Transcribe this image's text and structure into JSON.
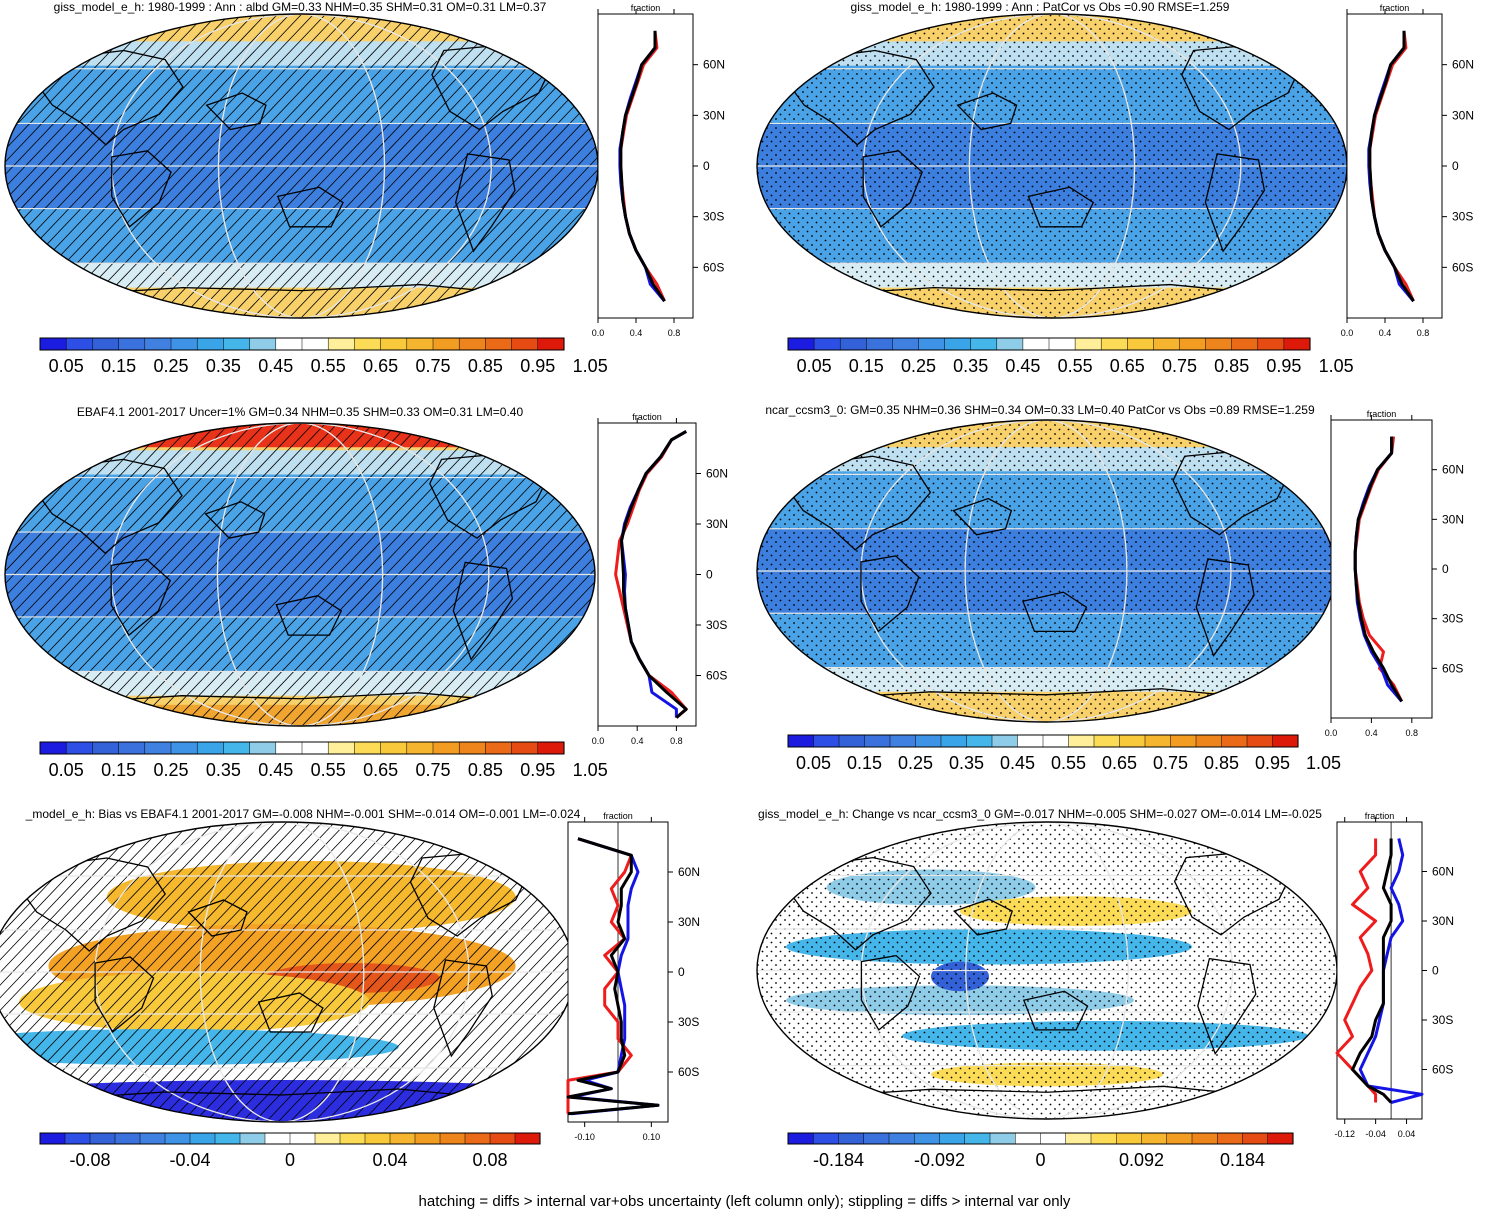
{
  "footnote": "hatching = diffs > internal var+obs uncertainty (left column only); stippling = diffs > internal var only",
  "colors": {
    "scale": [
      "#1c1ce0",
      "#2d4fe6",
      "#3261d8",
      "#3a71dc",
      "#3f80e0",
      "#3e93e6",
      "#3aa4e8",
      "#45b6ea",
      "#8fcce8",
      "#ffffff",
      "#ffffff",
      "#ffef9a",
      "#fcdc57",
      "#f8c93b",
      "#f5b52e",
      "#f29d22",
      "#ee841c",
      "#ea6a17",
      "#e54b12",
      "#dd1a0a"
    ],
    "ocean_base": "#4a8fe0",
    "polar_warm": "#f8d16a",
    "land": "#000000",
    "profile_red": "#ee1c1c",
    "profile_blue": "#1414e6",
    "profile_black": "#000000"
  },
  "panels": [
    {
      "id": "p1",
      "title": "giss_model_e_h: 1980-1999 : Ann : albd GM=0.33 NHM=0.35 SHM=0.31 OM=0.31 LM=0.37",
      "pattern": "hatch",
      "colorbar_labels": [
        "0.05",
        "0.15",
        "0.25",
        "0.35",
        "0.45",
        "0.55",
        "0.65",
        "0.75",
        "0.85",
        "0.95",
        "1.05"
      ],
      "profile_title": "fraction",
      "profile_xticks": [
        "0.0",
        "0.4",
        "0.8"
      ],
      "profile_yticks": [
        "60N",
        "30N",
        "0",
        "30S",
        "60S"
      ]
    },
    {
      "id": "p2",
      "title": "giss_model_e_h: 1980-1999 : Ann : PatCor vs Obs =0.90 RMSE=1.259",
      "pattern": "stipple",
      "colorbar_labels": [
        "0.05",
        "0.15",
        "0.25",
        "0.35",
        "0.45",
        "0.55",
        "0.65",
        "0.75",
        "0.85",
        "0.95",
        "1.05"
      ],
      "profile_title": "fraction",
      "profile_xticks": [
        "0.0",
        "0.4",
        "0.8"
      ],
      "profile_yticks": [
        "60N",
        "30N",
        "0",
        "30S",
        "60S"
      ]
    },
    {
      "id": "p3",
      "title": "EBAF4.1 2001-2017 Uncer=1% GM=0.34 NHM=0.35 SHM=0.33 OM=0.31 LM=0.40",
      "pattern": "hatch",
      "colorbar_labels": [
        "0.05",
        "0.15",
        "0.25",
        "0.35",
        "0.45",
        "0.55",
        "0.65",
        "0.75",
        "0.85",
        "0.95",
        "1.05"
      ],
      "profile_title": "fraction",
      "profile_xticks": [
        "0.0",
        "0.4",
        "0.8"
      ],
      "profile_yticks": [
        "60N",
        "30N",
        "0",
        "30S",
        "60S"
      ]
    },
    {
      "id": "p4",
      "title": "ncar_ccsm3_0: GM=0.35 NHM=0.36 SHM=0.34 OM=0.33 LM=0.40 PatCor vs Obs =0.89 RMSE=1.259",
      "pattern": "stipple",
      "colorbar_labels": [
        "0.05",
        "0.15",
        "0.25",
        "0.35",
        "0.45",
        "0.55",
        "0.65",
        "0.75",
        "0.85",
        "0.95",
        "1.05"
      ],
      "profile_title": "fraction",
      "profile_xticks": [
        "0.0",
        "0.4",
        "0.8"
      ],
      "profile_yticks": [
        "60N",
        "30N",
        "0",
        "30S",
        "60S"
      ]
    },
    {
      "id": "p5",
      "title": "_model_e_h: Bias vs EBAF4.1 2001-2017 GM=-0.008 NHM=-0.001 SHM=-0.014 OM=-0.001 LM=-0.024",
      "pattern": "hatch",
      "colorbar_labels": [
        "-0.08",
        "-0.04",
        "0",
        "0.04",
        "0.08"
      ],
      "profile_title": "fraction",
      "profile_xticks": [
        "-0.10",
        "0.10"
      ],
      "profile_yticks": [
        "60N",
        "30N",
        "0",
        "30S",
        "60S"
      ]
    },
    {
      "id": "p6",
      "title": "giss_model_e_h: Change vs ncar_ccsm3_0 GM=-0.017 NHM=-0.005 SHM=-0.027 OM=-0.014 LM=-0.025",
      "pattern": "stipple",
      "colorbar_labels": [
        "-0.184",
        "-0.092",
        "0",
        "0.092",
        "0.184"
      ],
      "profile_title": "fraction",
      "profile_xticks": [
        "-0.12",
        "-0.04",
        "0.04"
      ],
      "profile_yticks": [
        "60N",
        "30N",
        "0",
        "30S",
        "60S"
      ]
    }
  ],
  "chart_data": [
    {
      "type": "heatmap",
      "title": "giss_model_e_h: 1980-1999 : Ann : albd GM=0.33 NHM=0.35 SHM=0.31 OM=0.31 LM=0.37",
      "colorbar": {
        "min": 0.0,
        "max": 1.1,
        "step": 0.05,
        "labels": [
          "0.05",
          "0.15",
          "0.25",
          "0.35",
          "0.45",
          "0.55",
          "0.65",
          "0.75",
          "0.85",
          "0.95",
          "1.05"
        ]
      },
      "stats": {
        "GM": 0.33,
        "NHM": 0.35,
        "SHM": 0.31,
        "OM": 0.31,
        "LM": 0.37
      }
    },
    {
      "type": "line",
      "title": "fraction",
      "xlim": [
        0.0,
        1.0
      ],
      "x_ticks": [
        0.0,
        0.4,
        0.8
      ],
      "y_ticks": [
        "60N",
        "30N",
        "0",
        "30S",
        "60S"
      ],
      "y": [
        80,
        70,
        60,
        50,
        40,
        30,
        20,
        10,
        0,
        -10,
        -20,
        -30,
        -40,
        -50,
        -60,
        -70,
        -80
      ],
      "series": [
        {
          "name": "",
          "color": "red",
          "values": [
            0.6,
            0.62,
            0.48,
            0.42,
            0.36,
            0.3,
            0.27,
            0.24,
            0.24,
            0.25,
            0.27,
            0.29,
            0.33,
            0.4,
            0.5,
            0.62,
            0.7
          ]
        },
        {
          "name": "",
          "color": "blue",
          "values": [
            0.6,
            0.6,
            0.46,
            0.4,
            0.34,
            0.29,
            0.26,
            0.23,
            0.23,
            0.24,
            0.26,
            0.29,
            0.33,
            0.4,
            0.5,
            0.55,
            0.7
          ]
        },
        {
          "name": "",
          "color": "black",
          "values": [
            0.6,
            0.6,
            0.46,
            0.41,
            0.35,
            0.29,
            0.26,
            0.24,
            0.24,
            0.25,
            0.26,
            0.29,
            0.33,
            0.4,
            0.5,
            0.58,
            0.7
          ]
        }
      ]
    },
    {
      "type": "heatmap",
      "title": "giss_model_e_h: 1980-1999 : Ann : PatCor vs Obs =0.90 RMSE=1.259",
      "colorbar": {
        "min": 0.0,
        "max": 1.1,
        "step": 0.05,
        "labels": [
          "0.05",
          "0.15",
          "0.25",
          "0.35",
          "0.45",
          "0.55",
          "0.65",
          "0.75",
          "0.85",
          "0.95",
          "1.05"
        ]
      },
      "stats": {
        "PatCor": 0.9,
        "RMSE": 1.259
      }
    },
    {
      "type": "line",
      "title": "fraction",
      "xlim": [
        0.0,
        1.0
      ],
      "x_ticks": [
        0.0,
        0.4,
        0.8
      ],
      "y_ticks": [
        "60N",
        "30N",
        "0",
        "30S",
        "60S"
      ],
      "y": [
        80,
        70,
        60,
        50,
        40,
        30,
        20,
        10,
        0,
        -10,
        -20,
        -30,
        -40,
        -50,
        -60,
        -70,
        -80
      ],
      "series": [
        {
          "name": "",
          "color": "red",
          "values": [
            0.6,
            0.62,
            0.48,
            0.42,
            0.36,
            0.3,
            0.27,
            0.24,
            0.24,
            0.25,
            0.27,
            0.29,
            0.33,
            0.4,
            0.5,
            0.62,
            0.7
          ]
        },
        {
          "name": "",
          "color": "blue",
          "values": [
            0.6,
            0.6,
            0.46,
            0.4,
            0.34,
            0.29,
            0.26,
            0.23,
            0.23,
            0.24,
            0.26,
            0.29,
            0.33,
            0.4,
            0.5,
            0.55,
            0.7
          ]
        },
        {
          "name": "",
          "color": "black",
          "values": [
            0.6,
            0.6,
            0.46,
            0.41,
            0.35,
            0.29,
            0.26,
            0.24,
            0.24,
            0.25,
            0.26,
            0.29,
            0.33,
            0.4,
            0.5,
            0.58,
            0.7
          ]
        }
      ]
    },
    {
      "type": "heatmap",
      "title": "EBAF4.1 2001-2017 Uncer=1% GM=0.34 NHM=0.35 SHM=0.33 OM=0.31 LM=0.40",
      "colorbar": {
        "min": 0.0,
        "max": 1.1,
        "step": 0.05,
        "labels": [
          "0.05",
          "0.15",
          "0.25",
          "0.35",
          "0.45",
          "0.55",
          "0.65",
          "0.75",
          "0.85",
          "0.95",
          "1.05"
        ]
      },
      "stats": {
        "Uncer": "1%",
        "GM": 0.34,
        "NHM": 0.35,
        "SHM": 0.33,
        "OM": 0.31,
        "LM": 0.4
      }
    },
    {
      "type": "line",
      "title": "fraction",
      "xlim": [
        0.0,
        1.0
      ],
      "x_ticks": [
        0.0,
        0.4,
        0.8
      ],
      "y_ticks": [
        "60N",
        "30N",
        "0",
        "30S",
        "60S"
      ],
      "y": [
        85,
        80,
        70,
        60,
        50,
        40,
        30,
        20,
        10,
        0,
        -10,
        -20,
        -30,
        -40,
        -50,
        -60,
        -70,
        -80,
        -85
      ],
      "series": [
        {
          "name": "",
          "color": "red",
          "values": [
            0.9,
            0.75,
            0.65,
            0.5,
            0.42,
            0.36,
            0.3,
            0.22,
            0.2,
            0.18,
            0.22,
            0.26,
            0.3,
            0.34,
            0.42,
            0.52,
            0.75,
            0.9,
            0.8
          ]
        },
        {
          "name": "",
          "color": "blue",
          "values": [
            0.9,
            0.75,
            0.64,
            0.49,
            0.41,
            0.33,
            0.27,
            0.24,
            0.26,
            0.28,
            0.27,
            0.28,
            0.31,
            0.34,
            0.42,
            0.52,
            0.55,
            0.8,
            0.8
          ]
        },
        {
          "name": "",
          "color": "black",
          "values": [
            0.9,
            0.75,
            0.64,
            0.49,
            0.41,
            0.34,
            0.28,
            0.24,
            0.25,
            0.26,
            0.26,
            0.28,
            0.31,
            0.34,
            0.42,
            0.52,
            0.7,
            0.9,
            0.8
          ]
        }
      ]
    },
    {
      "type": "heatmap",
      "title": "ncar_ccsm3_0: GM=0.35 NHM=0.36 SHM=0.34 OM=0.33 LM=0.40 PatCor vs Obs =0.89 RMSE=1.259",
      "colorbar": {
        "min": 0.0,
        "max": 1.1,
        "step": 0.05,
        "labels": [
          "0.05",
          "0.15",
          "0.25",
          "0.35",
          "0.45",
          "0.55",
          "0.65",
          "0.75",
          "0.85",
          "0.95",
          "1.05"
        ]
      },
      "stats": {
        "GM": 0.35,
        "NHM": 0.36,
        "SHM": 0.34,
        "OM": 0.33,
        "LM": 0.4,
        "PatCor": 0.89,
        "RMSE": 1.259
      }
    },
    {
      "type": "line",
      "title": "fraction",
      "xlim": [
        0.0,
        1.0
      ],
      "x_ticks": [
        0.0,
        0.4,
        0.8
      ],
      "y_ticks": [
        "60N",
        "30N",
        "0",
        "30S",
        "60S"
      ],
      "y": [
        80,
        70,
        60,
        50,
        40,
        30,
        20,
        10,
        0,
        -10,
        -20,
        -30,
        -40,
        -50,
        -60,
        -70,
        -80
      ],
      "series": [
        {
          "name": "",
          "color": "red",
          "values": [
            0.62,
            0.6,
            0.47,
            0.4,
            0.34,
            0.28,
            0.26,
            0.24,
            0.24,
            0.26,
            0.28,
            0.32,
            0.38,
            0.52,
            0.48,
            0.62,
            0.7
          ]
        },
        {
          "name": "",
          "color": "blue",
          "values": [
            0.6,
            0.6,
            0.46,
            0.38,
            0.32,
            0.27,
            0.25,
            0.24,
            0.24,
            0.25,
            0.26,
            0.29,
            0.33,
            0.4,
            0.5,
            0.56,
            0.7
          ]
        },
        {
          "name": "",
          "color": "black",
          "values": [
            0.6,
            0.6,
            0.46,
            0.39,
            0.33,
            0.27,
            0.25,
            0.24,
            0.24,
            0.25,
            0.27,
            0.3,
            0.34,
            0.42,
            0.52,
            0.6,
            0.7
          ]
        }
      ]
    },
    {
      "type": "heatmap",
      "title": "_model_e_h: Bias vs EBAF4.1 2001-2017 GM=-0.008 NHM=-0.001 SHM=-0.014 OM=-0.001 LM=-0.024",
      "colorbar": {
        "min": -0.1,
        "max": 0.1,
        "labels": [
          "-0.08",
          "-0.04",
          "0",
          "0.04",
          "0.08"
        ]
      },
      "stats": {
        "GM": -0.008,
        "NHM": -0.001,
        "SHM": -0.014,
        "OM": -0.001,
        "LM": -0.024
      }
    },
    {
      "type": "line",
      "title": "fraction",
      "xlim": [
        -0.15,
        0.15
      ],
      "x_ticks": [
        -0.1,
        0.1
      ],
      "y_ticks": [
        "60N",
        "30N",
        "0",
        "30S",
        "60S"
      ],
      "y": [
        80,
        70,
        60,
        50,
        40,
        30,
        20,
        10,
        0,
        -10,
        -20,
        -30,
        -40,
        -50,
        -60,
        -65,
        -70,
        -75,
        -80,
        -85
      ],
      "series": [
        {
          "name": "",
          "color": "red",
          "values": [
            -0.12,
            0.04,
            0.02,
            -0.02,
            0.0,
            -0.02,
            0.02,
            -0.04,
            0.0,
            -0.04,
            -0.04,
            0.0,
            0.0,
            0.04,
            0.0,
            -0.15,
            -0.15,
            -0.15,
            -0.15,
            -0.15
          ]
        },
        {
          "name": "",
          "color": "blue",
          "values": [
            -0.12,
            0.04,
            0.06,
            0.04,
            0.03,
            0.03,
            0.03,
            0.01,
            0.0,
            0.01,
            0.02,
            0.02,
            0.02,
            0.01,
            0.0,
            -0.1,
            -0.02,
            -0.14,
            0.12,
            -0.14
          ]
        },
        {
          "name": "",
          "color": "black",
          "values": [
            -0.12,
            0.04,
            0.04,
            0.01,
            0.01,
            0.0,
            0.02,
            -0.02,
            0.0,
            -0.01,
            0.0,
            0.01,
            0.01,
            0.02,
            0.0,
            -0.12,
            -0.02,
            -0.15,
            0.12,
            -0.15
          ]
        }
      ]
    },
    {
      "type": "heatmap",
      "title": "giss_model_e_h: Change vs ncar_ccsm3_0 GM=-0.017 NHM=-0.005 SHM=-0.027 OM=-0.014 LM=-0.025",
      "colorbar": {
        "min": -0.23,
        "max": 0.23,
        "labels": [
          "-0.184",
          "-0.092",
          "0",
          "0.092",
          "0.184"
        ]
      },
      "stats": {
        "GM": -0.017,
        "NHM": -0.005,
        "SHM": -0.027,
        "OM": -0.014,
        "LM": -0.025
      }
    },
    {
      "type": "line",
      "title": "fraction",
      "xlim": [
        -0.14,
        0.08
      ],
      "x_ticks": [
        -0.12,
        -0.04,
        0.04
      ],
      "y_ticks": [
        "60N",
        "30N",
        "0",
        "30S",
        "60S"
      ],
      "y": [
        80,
        70,
        60,
        50,
        40,
        30,
        20,
        10,
        0,
        -10,
        -20,
        -30,
        -40,
        -50,
        -60,
        -70,
        -75,
        -80
      ],
      "series": [
        {
          "name": "",
          "color": "red",
          "values": [
            -0.04,
            -0.04,
            -0.08,
            -0.06,
            -0.1,
            -0.04,
            -0.08,
            -0.06,
            -0.05,
            -0.08,
            -0.1,
            -0.12,
            -0.1,
            -0.14,
            -0.1,
            -0.06,
            -0.04,
            -0.04
          ]
        },
        {
          "name": "",
          "color": "blue",
          "values": [
            0.02,
            0.03,
            0.02,
            0.0,
            0.02,
            0.03,
            0.0,
            -0.01,
            -0.02,
            -0.02,
            -0.02,
            -0.03,
            -0.04,
            -0.06,
            -0.08,
            -0.06,
            0.08,
            0.0
          ]
        },
        {
          "name": "",
          "color": "black",
          "values": [
            0.0,
            0.0,
            -0.01,
            -0.02,
            0.0,
            0.0,
            -0.02,
            -0.02,
            -0.02,
            -0.02,
            -0.02,
            -0.04,
            -0.05,
            -0.08,
            -0.1,
            -0.06,
            -0.02,
            0.0
          ]
        }
      ]
    }
  ]
}
